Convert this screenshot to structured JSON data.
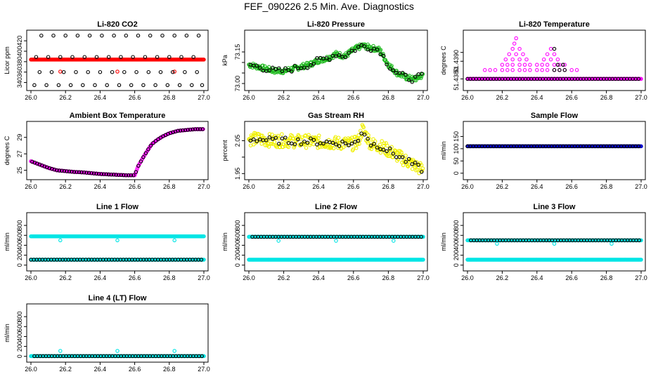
{
  "figure_title": "FEF_090226  2.5 Min. Ave. Diagnostics",
  "colors": {
    "black": "#000000",
    "red": "#ff0000",
    "green": "#22bb22",
    "magenta": "#ff00ff",
    "yellow": "#f0f000",
    "blue": "#0000cc",
    "cyan": "#00e5e5"
  },
  "chart_data": [
    {
      "type": "scatter",
      "title": "Li-820 CO2",
      "ylabel": "Licor ppm",
      "xlim": [
        26.0,
        27.0
      ],
      "ylim": [
        330,
        435
      ],
      "xticks": [
        "26.0",
        "26.2",
        "26.4",
        "26.6",
        "26.8",
        "27.0"
      ],
      "yticks": [
        340,
        360,
        380,
        400,
        420
      ],
      "series": [
        {
          "name": "co2-2.5min",
          "color": "red",
          "kind": "flat",
          "level": 384,
          "x_from": 26.0,
          "x_to": 27.0
        },
        {
          "name": "co2-outliers",
          "color": "red",
          "kind": "points",
          "x": [
            26.17,
            26.5,
            26.83
          ],
          "y": [
            361,
            361,
            361
          ]
        },
        {
          "name": "co2-1min",
          "color": "black",
          "kind": "points",
          "x": [
            26.02,
            26.09,
            26.16,
            26.23,
            26.3,
            26.37,
            26.44,
            26.51,
            26.58,
            26.65,
            26.72,
            26.79,
            26.86,
            26.93,
            26.99,
            26.05,
            26.12,
            26.19,
            26.26,
            26.33,
            26.4,
            26.47,
            26.54,
            26.61,
            26.68,
            26.75,
            26.82,
            26.89,
            26.96,
            26.03,
            26.1,
            26.17,
            26.24,
            26.31,
            26.38,
            26.45,
            26.52,
            26.59,
            26.66,
            26.73,
            26.8,
            26.87,
            26.94,
            26.06,
            26.13,
            26.2,
            26.27,
            26.34,
            26.41,
            26.48,
            26.55,
            26.62,
            26.69,
            26.76,
            26.83,
            26.9,
            26.97
          ],
          "y": [
            335,
            335,
            335,
            335,
            335,
            335,
            335,
            335,
            335,
            335,
            335,
            335,
            335,
            335,
            335,
            360,
            360,
            360,
            360,
            360,
            360,
            360,
            360,
            360,
            360,
            360,
            360,
            360,
            360,
            389,
            389,
            389,
            389,
            389,
            389,
            389,
            389,
            389,
            389,
            389,
            389,
            389,
            389,
            430,
            430,
            430,
            430,
            430,
            430,
            430,
            430,
            430,
            430,
            430,
            430,
            430,
            430
          ]
        }
      ]
    },
    {
      "type": "scatter",
      "title": "Li-820 Pressure",
      "ylabel": "kPa",
      "xlim": [
        26.0,
        27.0
      ],
      "ylim": [
        72.98,
        73.24
      ],
      "xticks": [
        "26.0",
        "26.2",
        "26.4",
        "26.6",
        "26.8",
        "27.0"
      ],
      "yticks": [
        73.0,
        73.05,
        73.1,
        73.15
      ],
      "yticklabels": [
        "73.00",
        "",
        "",
        "73.15"
      ],
      "series": [
        {
          "name": "pressure-2.5min",
          "color": "green",
          "kind": "cloud",
          "spread": 0.012,
          "x": [
            26.0,
            26.05,
            26.1,
            26.15,
            26.2,
            26.25,
            26.3,
            26.35,
            26.4,
            26.45,
            26.5,
            26.55,
            26.6,
            26.65,
            26.7,
            26.75,
            26.8,
            26.85,
            26.9,
            26.95,
            27.0
          ],
          "y": [
            73.09,
            73.08,
            73.07,
            73.06,
            73.06,
            73.07,
            73.08,
            73.09,
            73.11,
            73.12,
            73.14,
            73.13,
            73.16,
            73.18,
            73.17,
            73.16,
            73.09,
            73.05,
            73.03,
            73.02,
            73.04
          ]
        },
        {
          "name": "pressure-1min",
          "color": "black",
          "kind": "sampled",
          "n": 55,
          "jitter": 0.015
        }
      ]
    },
    {
      "type": "scatter",
      "title": "Li-820 Temperature",
      "ylabel": "degrees C",
      "xlim": [
        26.0,
        27.0
      ],
      "ylim": [
        51.4375,
        51.4406
      ],
      "xticks": [
        "26.0",
        "26.2",
        "26.4",
        "26.6",
        "26.8",
        "27.0"
      ],
      "yticks": [
        51.438,
        51.439,
        51.4395
      ],
      "yticklabels": [
        "51.4380",
        "51.4390",
        ""
      ],
      "series": [
        {
          "name": "temp-base",
          "color": "magenta",
          "kind": "flat",
          "level": 51.438,
          "x_from": 26.0,
          "x_to": 27.0
        },
        {
          "name": "temp-base-black",
          "color": "black",
          "kind": "flat-sparse",
          "level": 51.438,
          "x_from": 26.0,
          "x_to": 27.0
        },
        {
          "name": "temp-upper",
          "color": "magenta",
          "kind": "points",
          "x": [
            26.1,
            26.13,
            26.16,
            26.2,
            26.23,
            26.26,
            26.3,
            26.33,
            26.36,
            26.4,
            26.43,
            26.46,
            26.5,
            26.53,
            26.56,
            26.6,
            26.63,
            26.2,
            26.23,
            26.26,
            26.3,
            26.33,
            26.36,
            26.4,
            26.43,
            26.46,
            26.5,
            26.53,
            26.56,
            26.22,
            26.26,
            26.3,
            26.34,
            26.44,
            26.48,
            26.52,
            26.24,
            26.28,
            26.32,
            26.46,
            26.5,
            26.26,
            26.3,
            26.48,
            26.27,
            26.28
          ],
          "y": [
            51.4385,
            51.4385,
            51.4385,
            51.4385,
            51.4385,
            51.4385,
            51.4385,
            51.4385,
            51.4385,
            51.4385,
            51.4385,
            51.4385,
            51.4385,
            51.4385,
            51.4385,
            51.4385,
            51.4385,
            51.4388,
            51.4388,
            51.4388,
            51.4388,
            51.4388,
            51.4388,
            51.4388,
            51.4388,
            51.4388,
            51.4388,
            51.4388,
            51.4388,
            51.4391,
            51.4391,
            51.4391,
            51.4391,
            51.4391,
            51.4391,
            51.4391,
            51.4394,
            51.4394,
            51.4394,
            51.4394,
            51.4394,
            51.4397,
            51.4397,
            51.4397,
            51.44,
            51.4403
          ]
        },
        {
          "name": "temp-black-upper",
          "color": "black",
          "kind": "points",
          "x": [
            26.5,
            26.53,
            26.56,
            26.52,
            26.55,
            26.5
          ],
          "y": [
            51.4385,
            51.4385,
            51.4385,
            51.4388,
            51.4388,
            51.4397
          ]
        }
      ]
    },
    {
      "type": "scatter",
      "title": "Ambient Box Temperature",
      "ylabel": "degrees C",
      "xlim": [
        26.0,
        27.0
      ],
      "ylim": [
        24.2,
        30.6
      ],
      "xticks": [
        "26.0",
        "26.2",
        "26.4",
        "26.6",
        "26.8",
        "27.0"
      ],
      "yticks": [
        25,
        27,
        29
      ],
      "series": [
        {
          "name": "box-2.5min",
          "color": "magenta",
          "kind": "curve",
          "x": [
            26.0,
            26.05,
            26.1,
            26.15,
            26.2,
            26.25,
            26.3,
            26.35,
            26.4,
            26.45,
            26.5,
            26.55,
            26.6,
            26.62,
            26.65,
            26.68,
            26.7,
            26.73,
            26.76,
            26.8,
            26.85,
            26.9,
            26.95,
            27.0
          ],
          "y": [
            26.1,
            25.7,
            25.3,
            25.0,
            24.9,
            24.8,
            24.75,
            24.65,
            24.55,
            24.5,
            24.45,
            24.4,
            24.4,
            25.5,
            26.6,
            27.6,
            28.2,
            28.7,
            29.1,
            29.5,
            29.8,
            29.9,
            30.0,
            30.0
          ]
        },
        {
          "name": "box-1min",
          "color": "black",
          "kind": "sampled",
          "n": 70,
          "jitter": 0.0
        }
      ]
    },
    {
      "type": "scatter",
      "title": "Gas Stream RH",
      "ylabel": "percent",
      "xlim": [
        26.0,
        27.0
      ],
      "ylim": [
        1.94,
        2.1
      ],
      "xticks": [
        "26.0",
        "26.2",
        "26.4",
        "26.6",
        "26.8",
        "27.0"
      ],
      "yticks": [
        1.95,
        2.0,
        2.05
      ],
      "yticklabels": [
        "1.95",
        "",
        "2.05"
      ],
      "series": [
        {
          "name": "rh-2.5min",
          "color": "yellow",
          "kind": "cloud",
          "spread": 0.02,
          "x": [
            26.0,
            26.05,
            26.1,
            26.15,
            26.2,
            26.25,
            26.3,
            26.35,
            26.4,
            26.45,
            26.5,
            26.55,
            26.6,
            26.63,
            26.65,
            26.68,
            26.7,
            26.75,
            26.8,
            26.85,
            26.9,
            26.95,
            27.0
          ],
          "y": [
            2.055,
            2.055,
            2.052,
            2.05,
            2.05,
            2.049,
            2.048,
            2.048,
            2.046,
            2.045,
            2.043,
            2.042,
            2.04,
            2.05,
            2.085,
            2.06,
            2.04,
            2.035,
            2.02,
            2.005,
            1.99,
            1.975,
            1.96
          ]
        },
        {
          "name": "rh-1min",
          "color": "black",
          "kind": "sampled",
          "n": 55,
          "jitter": 0.01
        }
      ]
    },
    {
      "type": "scatter",
      "title": "Sample Flow",
      "ylabel": "ml/min",
      "xlim": [
        26.0,
        27.0
      ],
      "ylim": [
        -15,
        200
      ],
      "xticks": [
        "26.0",
        "26.2",
        "26.4",
        "26.6",
        "26.8",
        "27.0"
      ],
      "yticks": [
        0,
        50,
        100,
        150
      ],
      "series": [
        {
          "name": "sample-2.5min",
          "color": "blue",
          "kind": "flat",
          "level": 110,
          "x_from": 26.0,
          "x_to": 27.0
        },
        {
          "name": "sample-1min",
          "color": "black",
          "kind": "flat-sparse",
          "level": 110,
          "x_from": 26.0,
          "x_to": 27.0
        }
      ]
    },
    {
      "type": "scatter",
      "title": "Line 1 Flow",
      "ylabel": "ml/min",
      "xlim": [
        26.0,
        27.0
      ],
      "ylim": [
        -60,
        1000
      ],
      "xticks": [
        "26.0",
        "26.2",
        "26.4",
        "26.6",
        "26.8",
        "27.0"
      ],
      "yticks": [
        0,
        200,
        400,
        600,
        800
      ],
      "series": [
        {
          "name": "line1-cyan",
          "color": "cyan",
          "kind": "flat",
          "level": 580,
          "x_from": 26.0,
          "x_to": 27.0
        },
        {
          "name": "line1-cyan-low",
          "color": "cyan",
          "kind": "flat",
          "level": 110,
          "x_from": 26.0,
          "x_to": 27.0
        },
        {
          "name": "line1-black",
          "color": "black",
          "kind": "flat-sparse",
          "level": 110,
          "x_from": 26.0,
          "x_to": 27.0
        },
        {
          "name": "line1-dips",
          "color": "cyan",
          "kind": "points",
          "x": [
            26.17,
            26.5,
            26.83
          ],
          "y": [
            500,
            500,
            500
          ]
        }
      ]
    },
    {
      "type": "scatter",
      "title": "Line 2 Flow",
      "ylabel": "ml/min",
      "xlim": [
        26.0,
        27.0
      ],
      "ylim": [
        -60,
        1000
      ],
      "xticks": [
        "26.0",
        "26.2",
        "26.4",
        "26.6",
        "26.8",
        "27.0"
      ],
      "yticks": [
        0,
        200,
        400,
        600,
        800
      ],
      "series": [
        {
          "name": "line2-cyan-low",
          "color": "cyan",
          "kind": "flat",
          "level": 110,
          "x_from": 26.0,
          "x_to": 27.0
        },
        {
          "name": "line2-cyan",
          "color": "cyan",
          "kind": "flat",
          "level": 570,
          "x_from": 26.0,
          "x_to": 27.0
        },
        {
          "name": "line2-black",
          "color": "black",
          "kind": "flat-sparse",
          "level": 570,
          "x_from": 26.02,
          "x_to": 27.0
        },
        {
          "name": "line2-dips",
          "color": "cyan",
          "kind": "points",
          "x": [
            26.17,
            26.5,
            26.83
          ],
          "y": [
            490,
            490,
            490
          ]
        }
      ]
    },
    {
      "type": "scatter",
      "title": "Line 3 Flow",
      "ylabel": "ml/min",
      "xlim": [
        26.0,
        27.0
      ],
      "ylim": [
        -60,
        1000
      ],
      "xticks": [
        "26.0",
        "26.2",
        "26.4",
        "26.6",
        "26.8",
        "27.0"
      ],
      "yticks": [
        0,
        200,
        400,
        600,
        800
      ],
      "series": [
        {
          "name": "line3-cyan-low",
          "color": "cyan",
          "kind": "flat",
          "level": 110,
          "x_from": 26.0,
          "x_to": 27.0
        },
        {
          "name": "line3-cyan",
          "color": "cyan",
          "kind": "flat",
          "level": 500,
          "x_from": 26.0,
          "x_to": 27.0
        },
        {
          "name": "line3-black",
          "color": "black",
          "kind": "flat-sparse",
          "level": 500,
          "x_from": 26.02,
          "x_to": 27.0
        },
        {
          "name": "line3-dips",
          "color": "cyan",
          "kind": "points",
          "x": [
            26.17,
            26.5,
            26.83
          ],
          "y": [
            430,
            430,
            430
          ]
        }
      ]
    },
    {
      "type": "scatter",
      "title": "Line 4 (LT) Flow",
      "ylabel": "ml/min",
      "xlim": [
        26.0,
        27.0
      ],
      "ylim": [
        -60,
        1000
      ],
      "xticks": [
        "26.0",
        "26.2",
        "26.4",
        "26.6",
        "26.8",
        "27.0"
      ],
      "yticks": [
        0,
        200,
        400,
        600,
        800
      ],
      "series": [
        {
          "name": "line4-cyan",
          "color": "cyan",
          "kind": "flat",
          "level": 5,
          "x_from": 26.0,
          "x_to": 27.0
        },
        {
          "name": "line4-black",
          "color": "black",
          "kind": "flat-sparse",
          "level": 5,
          "x_from": 26.02,
          "x_to": 27.0
        },
        {
          "name": "line4-spikes",
          "color": "cyan",
          "kind": "points",
          "x": [
            26.17,
            26.5,
            26.83
          ],
          "y": [
            110,
            110,
            110
          ]
        }
      ]
    }
  ]
}
